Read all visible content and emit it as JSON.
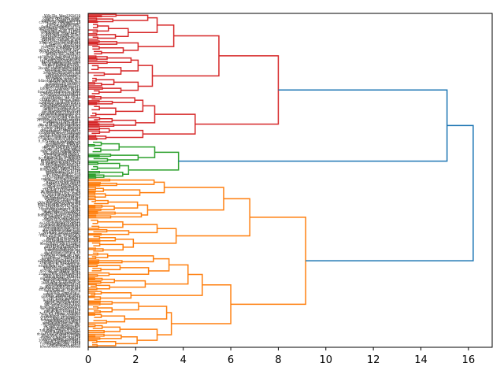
{
  "chart_data": {
    "type": "dendrogram",
    "orientation": "left",
    "title": "",
    "xlabel": "",
    "ylabel": "",
    "xlim": [
      0,
      17
    ],
    "xticks": [
      0,
      2,
      4,
      6,
      8,
      10,
      12,
      14,
      16
    ],
    "xtick_labels": [
      "0",
      "2",
      "4",
      "6",
      "8",
      "10",
      "12",
      "14",
      "16"
    ],
    "leaf_labels_visible": "dense, illegible",
    "leaf_count_estimate": 210,
    "colors": {
      "above_threshold": "#1f77b4",
      "cluster_red": "#d62728",
      "cluster_green": "#2ca02c",
      "cluster_orange": "#ff7f0e"
    },
    "clusters": [
      {
        "name": "red",
        "color": "#d62728",
        "leaf_fraction": [
          0.0,
          0.38
        ],
        "root_height": 8.0
      },
      {
        "name": "green",
        "color": "#2ca02c",
        "leaf_fraction": [
          0.38,
          0.495
        ],
        "root_height": 3.8
      },
      {
        "name": "orange",
        "color": "#ff7f0e",
        "leaf_fraction": [
          0.495,
          1.0
        ],
        "root_height": 9.15
      }
    ],
    "top_links": [
      {
        "children": [
          "red",
          "green"
        ],
        "height": 15.1,
        "color": "#1f77b4"
      },
      {
        "children": [
          "red+green",
          "orange"
        ],
        "height": 16.2,
        "color": "#1f77b4"
      }
    ],
    "sub_links": {
      "red": [
        {
          "height": 5.5,
          "children_heights": [
            3.6,
            2.7
          ]
        },
        {
          "height": 3.6,
          "children_heights": [
            2.9,
            2.1
          ]
        },
        {
          "height": 2.7,
          "children_heights": [
            2.1,
            2.1
          ]
        },
        {
          "height": 4.5,
          "children_heights": [
            2.8,
            2.3
          ]
        },
        {
          "height": 2.8,
          "children_heights": [
            2.3,
            2.0
          ]
        }
      ],
      "green": [
        {
          "height": 3.8,
          "children_heights": [
            2.8,
            1.7
          ]
        },
        {
          "height": 2.8,
          "children_heights": [
            2.1,
            1.3
          ]
        }
      ],
      "orange": [
        {
          "height": 6.8,
          "children_heights": [
            5.7,
            3.7
          ]
        },
        {
          "height": 5.7,
          "children_heights": [
            3.2,
            2.5
          ]
        },
        {
          "height": 3.7,
          "children_heights": [
            2.9,
            1.9
          ]
        },
        {
          "height": 6.0,
          "children_heights": [
            4.8,
            3.5
          ]
        },
        {
          "height": 4.8,
          "children_heights": [
            4.2,
            1.8
          ]
        },
        {
          "height": 4.2,
          "children_heights": [
            3.4,
            2.4
          ]
        },
        {
          "height": 3.5,
          "children_heights": [
            3.3,
            2.9
          ]
        }
      ]
    }
  }
}
